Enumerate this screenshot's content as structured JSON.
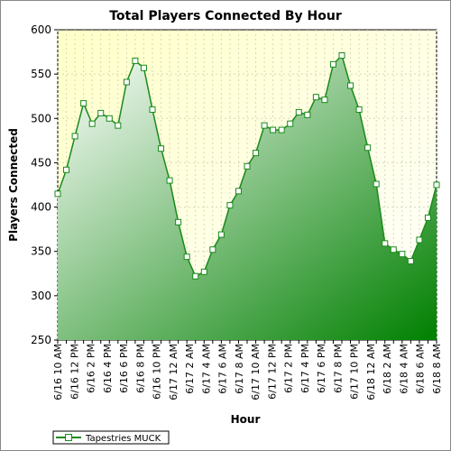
{
  "chart_data": {
    "type": "area",
    "title": "Total Players Connected By Hour",
    "xlabel": "Hour",
    "ylabel": "Players Connected",
    "ylim": [
      250,
      600
    ],
    "yticks": [
      250,
      300,
      350,
      400,
      450,
      500,
      550,
      600
    ],
    "grid": true,
    "legend_position": "bottom-left",
    "x_tick_labels": [
      "6/16 10 AM",
      "6/16 12 PM",
      "6/16 2 PM",
      "6/16 4 PM",
      "6/16 6 PM",
      "6/16 8 PM",
      "6/16 10 PM",
      "6/17 12 AM",
      "6/17 2 AM",
      "6/17 4 AM",
      "6/17 6 AM",
      "6/17 8 AM",
      "6/17 10 AM",
      "6/17 12 PM",
      "6/17 2 PM",
      "6/17 4 PM",
      "6/17 6 PM",
      "6/17 8 PM",
      "6/17 10 PM",
      "6/18 12 AM",
      "6/18 2 AM",
      "6/18 4 AM",
      "6/18 6 AM",
      "6/18 8 AM"
    ],
    "series": [
      {
        "name": "Tapestries MUCK",
        "values": [
          415,
          442,
          480,
          517,
          494,
          506,
          500,
          492,
          541,
          565,
          557,
          510,
          466,
          430,
          383,
          344,
          322,
          327,
          352,
          369,
          402,
          418,
          446,
          461,
          492,
          487,
          487,
          494,
          507,
          504,
          524,
          521,
          561,
          571,
          537,
          510,
          467,
          426,
          359,
          352,
          347,
          339,
          363,
          388,
          425
        ]
      }
    ],
    "colors": {
      "line": "#1a8a1a",
      "marker_fill": "#ffffff",
      "area_top": "#ffffff",
      "area_bottom": "#008000",
      "plot_bg_top": "#ffffcc",
      "plot_bg_bottom": "#ffffff",
      "grid": "#d8d8b8"
    }
  }
}
